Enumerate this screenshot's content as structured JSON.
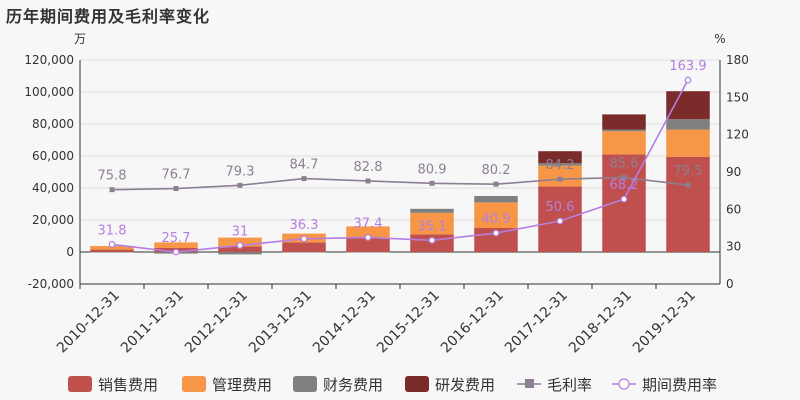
{
  "title": "历年期间费用及毛利率变化",
  "chart_data": {
    "type": "bar",
    "title": "历年期间费用及毛利率变化",
    "left_unit": "万",
    "right_unit": "%",
    "categories": [
      "2010-12-31",
      "2011-12-31",
      "2012-12-31",
      "2013-12-31",
      "2014-12-31",
      "2015-12-31",
      "2016-12-31",
      "2017-12-31",
      "2018-12-31",
      "2019-12-31"
    ],
    "ylim_left": [
      -20000,
      120000
    ],
    "yticks_left": [
      "-20,000",
      "0",
      "20,000",
      "40,000",
      "60,000",
      "80,000",
      "100,000",
      "120,000"
    ],
    "ylim_right": [
      0,
      180
    ],
    "yticks_right": [
      "0",
      "30",
      "60",
      "90",
      "120",
      "150",
      "180"
    ],
    "series": [
      {
        "name": "销售费用",
        "kind": "bar",
        "color": "#c0504d",
        "values": [
          1500,
          2500,
          3500,
          6000,
          8500,
          11000,
          15000,
          41000,
          61000,
          59500
        ]
      },
      {
        "name": "管理费用",
        "kind": "bar",
        "color": "#f79646",
        "values": [
          2200,
          3500,
          5500,
          5500,
          7500,
          13500,
          16000,
          13000,
          14500,
          17000
        ]
      },
      {
        "name": "财务费用",
        "kind": "bar",
        "color": "#7f7f7f",
        "values": [
          -300,
          -1000,
          -1500,
          -200,
          -300,
          2500,
          4000,
          1500,
          1000,
          6500
        ]
      },
      {
        "name": "研发费用",
        "kind": "bar",
        "color": "#7b2c2a",
        "values": [
          0,
          0,
          0,
          0,
          0,
          0,
          0,
          7500,
          9500,
          17500
        ]
      },
      {
        "name": "毛利率",
        "kind": "line",
        "axis": "right",
        "color": "#8c7f92",
        "values": [
          75.8,
          76.7,
          79.3,
          84.7,
          82.8,
          80.9,
          80.2,
          84.2,
          85.6,
          79.5
        ],
        "labels": [
          "75.8",
          "76.7",
          "79.3",
          "84.7",
          "82.8",
          "80.9",
          "80.2",
          "84.2",
          "85.6",
          "79.5"
        ]
      },
      {
        "name": "期间费用率",
        "kind": "line",
        "axis": "right",
        "color": "#b57ee0",
        "values": [
          31.8,
          25.7,
          31,
          36.3,
          37.4,
          35.1,
          40.9,
          50.6,
          68.2,
          163.9
        ],
        "labels": [
          "31.8",
          "25.7",
          "31",
          "36.3",
          "37.4",
          "35.1",
          "40.9",
          "50.6",
          "68.2",
          "163.9"
        ]
      }
    ],
    "legend": [
      "销售费用",
      "管理费用",
      "财务费用",
      "研发费用",
      "毛利率",
      "期间费用率"
    ],
    "legend_position": "bottom",
    "grid": true
  }
}
